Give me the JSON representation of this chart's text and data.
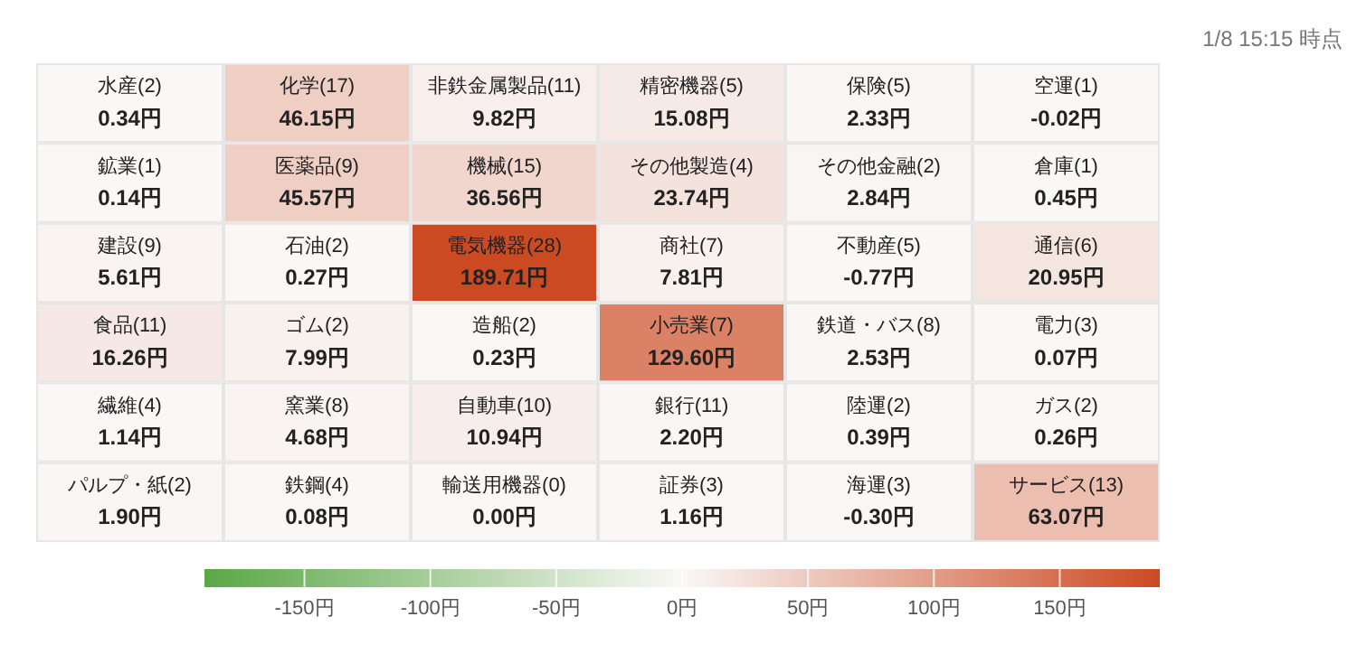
{
  "chart_data": {
    "type": "heatmap",
    "annotations": [
      "1/8 15:15 時点"
    ],
    "categories": [
      null,
      null,
      null,
      null,
      null,
      null
    ],
    "y_categories": [
      null,
      null,
      null,
      null,
      null,
      null
    ],
    "cells": [
      [
        0.34,
        46.15,
        9.82,
        15.08,
        2.33,
        -0.02
      ],
      [
        0.14,
        45.57,
        36.56,
        23.74,
        2.84,
        0.45
      ],
      [
        5.61,
        0.27,
        189.71,
        7.81,
        -0.77,
        20.95
      ],
      [
        16.26,
        7.99,
        0.23,
        129.6,
        2.53,
        0.07
      ],
      [
        1.14,
        4.68,
        10.94,
        2.2,
        0.39,
        0.26
      ],
      [
        1.9,
        0.08,
        0.0,
        1.16,
        -0.3,
        63.07
      ]
    ],
    "cell_labels": [
      [
        "水産(2)\n0.34円",
        "化学(17)\n46.15円",
        "非鉄金属製品(11)\n9.82円",
        "精密機器(5)\n15.08円",
        "保険(5)\n2.33円",
        "空運(1)\n-0.02円"
      ],
      [
        "鉱業(1)\n0.14円",
        "医薬品(9)\n45.57円",
        "機械(15)\n36.56円",
        "その他製造(4)\n23.74円",
        "その他金融(2)\n2.84円",
        "倉庫(1)\n0.45円"
      ],
      [
        "建設(9)\n5.61円",
        "石油(2)\n0.27円",
        "電気機器(28)\n189.71円",
        "商社(7)\n7.81円",
        "不動産(5)\n-0.77円",
        "通信(6)\n20.95円"
      ],
      [
        "食品(11)\n16.26円",
        "ゴム(2)\n7.99円",
        "造船(2)\n0.23円",
        "小売業(7)\n129.60円",
        "鉄道・バス(8)\n2.53円",
        "電力(3)\n0.07円"
      ],
      [
        "繊維(4)\n1.14円",
        "窯業(8)\n4.68円",
        "自動車(10)\n10.94円",
        "銀行(11)\n2.20円",
        "陸運(2)\n0.39円",
        "ガス(2)\n0.26円"
      ],
      [
        "パルプ・紙(2)\n1.90円",
        "鉄鋼(4)\n0.08円",
        "輸送用機器(0)\n0.00円",
        "証券(3)\n1.16円",
        "海運(3)\n-0.30円",
        "サービス(13)\n63.07円"
      ]
    ],
    "clim": [
      -189.71,
      189.71
    ],
    "cticks": [
      {
        "value": -150,
        "label": "-150円"
      },
      {
        "value": -100,
        "label": "-100円"
      },
      {
        "value": -50,
        "label": "-50円"
      },
      {
        "value": 0,
        "label": "0円"
      },
      {
        "value": 50,
        "label": "50円"
      },
      {
        "value": 100,
        "label": "100円"
      },
      {
        "value": 150,
        "label": "150円"
      }
    ]
  }
}
